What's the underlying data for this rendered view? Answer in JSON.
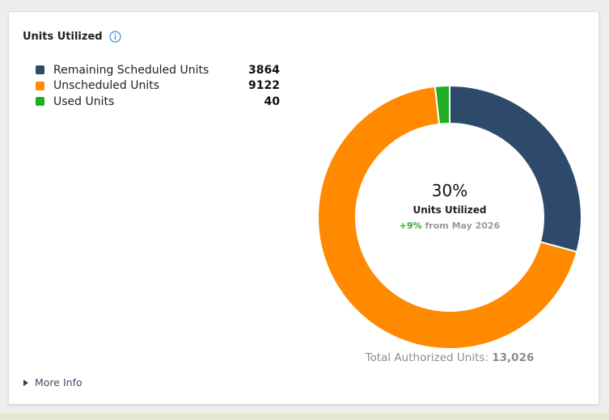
{
  "card": {
    "title": "Units Utilized",
    "info_icon": "info-circle-icon",
    "more_info_label": "More Info"
  },
  "legend": [
    {
      "label": "Remaining Scheduled Units",
      "value": "3864",
      "color": "#2e4a6b"
    },
    {
      "label": "Unscheduled Units",
      "value": "9122",
      "color": "#ff8a00"
    },
    {
      "label": "Used Units",
      "value": "40",
      "color": "#1fae1f"
    }
  ],
  "center": {
    "percent": "30%",
    "label": "Units Utilized",
    "change_value": "+9%",
    "change_text": "from May 2026"
  },
  "total": {
    "label": "Total Authorized Units:",
    "value": "13,026"
  },
  "chart_data": {
    "type": "pie",
    "variant": "donut",
    "categories": [
      "Remaining Scheduled Units",
      "Unscheduled Units",
      "Used Units"
    ],
    "values": [
      3864,
      9122,
      40
    ],
    "colors": [
      "#2e4a6b",
      "#ff8a00",
      "#1fae1f"
    ],
    "title": "Units Utilized",
    "center_label": "30%",
    "legend_position": "left",
    "total": 13026
  }
}
